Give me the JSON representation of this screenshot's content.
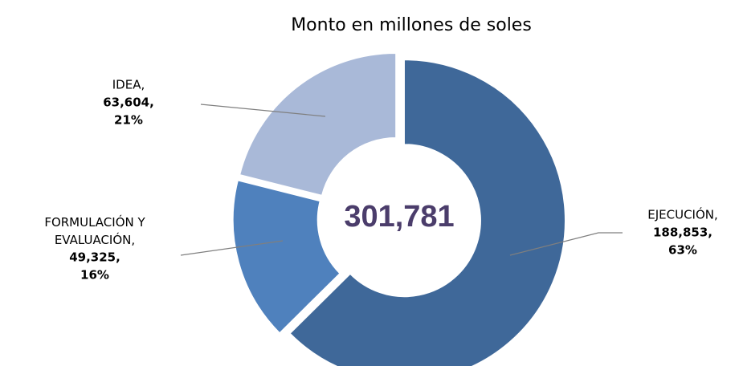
{
  "chart_data": {
    "type": "donut",
    "title": "Monto en millones de soles",
    "categories": [
      "EJECUCIÓN,",
      "FORMULACIÓN Y EVALUACIÓN,",
      "IDEA,"
    ],
    "values": [
      188853,
      49325,
      63604
    ],
    "value_labels": [
      "188,853,",
      "49,325,",
      "63,604,"
    ],
    "percents": [
      63,
      16,
      21
    ],
    "percent_labels": [
      "63%",
      "16%",
      "21%"
    ],
    "colors": [
      "#3f6899",
      "#4f81bd",
      "#a9b9d8"
    ],
    "total": 301781,
    "total_label": "301,781"
  }
}
